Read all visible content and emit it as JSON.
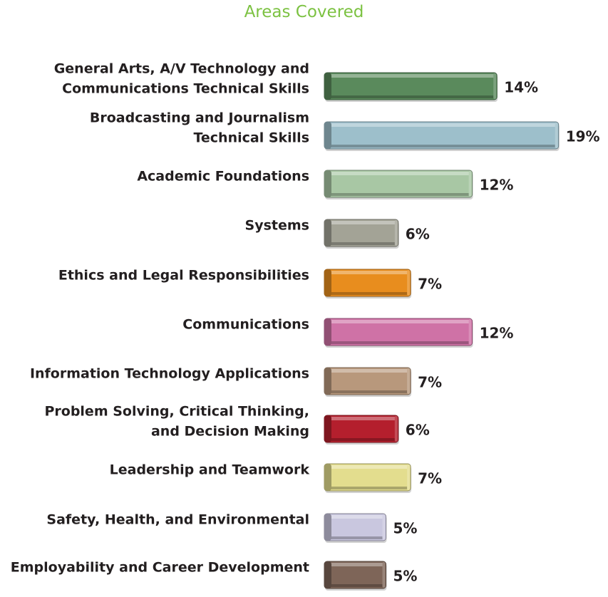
{
  "chart_data": {
    "type": "bar",
    "orientation": "horizontal",
    "title": "Areas Covered",
    "categories": [
      [
        "General Arts, A/V Technology and",
        "Communications Technical Skills"
      ],
      [
        "Broadcasting and Journalism",
        "Technical Skills"
      ],
      [
        "Academic Foundations"
      ],
      [
        "Systems"
      ],
      [
        "Ethics and Legal Responsibilities"
      ],
      [
        "Communications"
      ],
      [
        "Information Technology Applications"
      ],
      [
        "Problem Solving, Critical Thinking,",
        "and Decision Making"
      ],
      [
        "Leadership and Teamwork"
      ],
      [
        "Safety, Health, and Environmental"
      ],
      [
        "Employability and Career Development"
      ]
    ],
    "values": [
      14,
      19,
      12,
      6,
      7,
      12,
      7,
      6,
      7,
      5,
      5
    ],
    "value_labels": [
      "14%",
      "19%",
      "12%",
      "6%",
      "7%",
      "12%",
      "7%",
      "6%",
      "7%",
      "5%",
      "5%"
    ],
    "unit": "%",
    "bar_colors": [
      "#5a8a5c",
      "#9dbfcb",
      "#a8c7a4",
      "#a3a396",
      "#e88d1e",
      "#cf72a6",
      "#b8987c",
      "#b41f2d",
      "#e3dd8e",
      "#c9c7df",
      "#7e6558"
    ],
    "legend": "none",
    "grid": false
  }
}
